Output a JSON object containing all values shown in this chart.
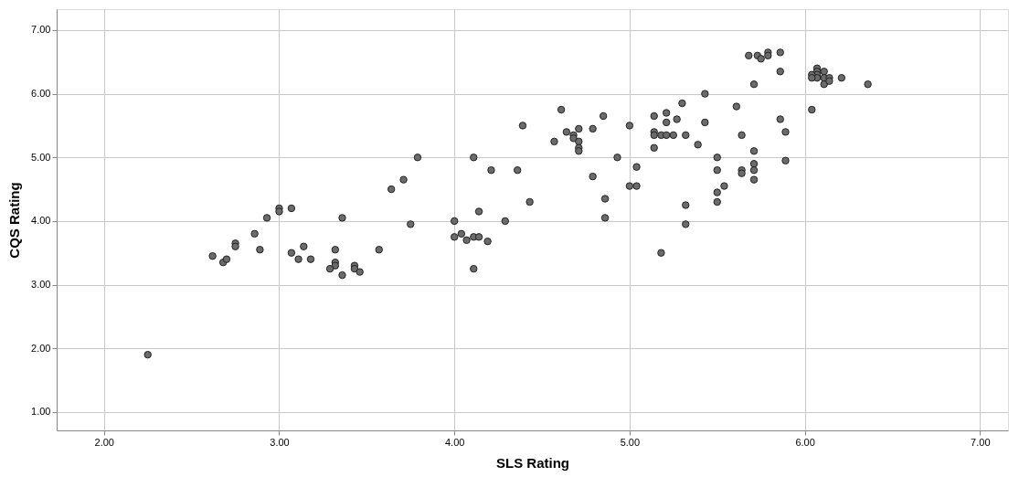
{
  "chart_data": {
    "type": "scatter",
    "xlabel": "SLS Rating",
    "ylabel": "CQS Rating",
    "x": [
      2.25,
      2.62,
      2.68,
      2.7,
      2.75,
      2.75,
      2.86,
      2.89,
      2.93,
      3.0,
      3.0,
      3.07,
      3.07,
      3.11,
      3.14,
      3.18,
      3.32,
      3.32,
      3.32,
      3.29,
      3.36,
      3.36,
      3.43,
      3.43,
      3.46,
      3.57,
      3.64,
      3.71,
      3.79,
      3.75,
      4.0,
      4.0,
      4.04,
      4.07,
      4.11,
      4.14,
      4.19,
      4.11,
      4.11,
      4.14,
      4.21,
      4.29,
      4.36,
      4.39,
      4.43,
      4.57,
      4.61,
      4.64,
      4.68,
      4.68,
      4.71,
      4.71,
      4.71,
      4.71,
      4.79,
      4.79,
      4.85,
      4.86,
      4.86,
      4.93,
      5.0,
      5.0,
      5.04,
      5.04,
      5.14,
      5.14,
      5.14,
      5.14,
      5.18,
      5.21,
      5.25,
      5.32,
      5.21,
      5.21,
      5.18,
      5.27,
      5.3,
      5.32,
      5.32,
      5.39,
      5.43,
      5.43,
      5.5,
      5.5,
      5.5,
      5.5,
      5.54,
      5.61,
      5.64,
      5.64,
      5.64,
      5.68,
      5.71,
      5.71,
      5.71,
      5.71,
      5.71,
      5.73,
      5.75,
      5.79,
      5.79,
      5.86,
      5.86,
      5.86,
      5.89,
      5.89,
      6.04,
      6.07,
      6.07,
      6.07,
      6.07,
      6.04,
      6.04,
      6.11,
      6.11,
      6.11,
      6.14,
      6.14,
      6.21,
      6.36
    ],
    "series": [
      {
        "color": "#6b6b6b",
        "values": [
          1.9,
          3.45,
          3.35,
          3.4,
          3.65,
          3.6,
          3.8,
          3.55,
          4.05,
          4.2,
          4.15,
          4.2,
          3.5,
          3.4,
          3.6,
          3.4,
          3.55,
          3.35,
          3.3,
          3.25,
          4.05,
          3.15,
          3.3,
          3.25,
          3.2,
          3.55,
          4.5,
          4.65,
          5.0,
          3.95,
          4.0,
          3.75,
          3.8,
          3.7,
          3.75,
          3.75,
          3.68,
          3.25,
          5.0,
          4.15,
          4.8,
          4.0,
          4.8,
          5.5,
          4.3,
          5.25,
          5.75,
          5.4,
          5.35,
          5.3,
          5.45,
          5.25,
          5.15,
          5.1,
          5.45,
          4.7,
          5.65,
          4.35,
          4.05,
          5.0,
          5.5,
          4.55,
          4.55,
          4.85,
          5.65,
          5.4,
          5.35,
          5.15,
          5.35,
          5.35,
          5.35,
          5.35,
          5.7,
          5.55,
          3.5,
          5.6,
          5.85,
          4.25,
          3.95,
          5.2,
          6.0,
          5.55,
          5.0,
          4.8,
          4.45,
          4.3,
          4.55,
          5.8,
          5.35,
          4.8,
          4.75,
          6.6,
          6.15,
          5.1,
          4.9,
          4.8,
          4.65,
          6.6,
          6.55,
          6.65,
          6.6,
          6.65,
          6.35,
          5.6,
          5.4,
          4.95,
          5.75,
          6.4,
          6.35,
          6.3,
          6.25,
          6.3,
          6.25,
          6.35,
          6.25,
          6.15,
          6.25,
          6.2,
          6.25,
          6.15
        ]
      }
    ],
    "xlim": [
      1.73,
      7.16
    ],
    "ylim": [
      0.71,
      7.33
    ],
    "xticks": [
      {
        "value": 2,
        "label": "2.00"
      },
      {
        "value": 3,
        "label": "3.00"
      },
      {
        "value": 4,
        "label": "4.00"
      },
      {
        "value": 5,
        "label": "5.00"
      },
      {
        "value": 6,
        "label": "6.00"
      },
      {
        "value": 7,
        "label": "7.00"
      }
    ],
    "yticks": [
      {
        "value": 1,
        "label": "1.00"
      },
      {
        "value": 2,
        "label": "2.00"
      },
      {
        "value": 3,
        "label": "3.00"
      },
      {
        "value": 4,
        "label": "4.00"
      },
      {
        "value": 5,
        "label": "5.00"
      },
      {
        "value": 6,
        "label": "6.00"
      },
      {
        "value": 7,
        "label": "7.00"
      }
    ],
    "grid": true,
    "marker": "circle"
  }
}
